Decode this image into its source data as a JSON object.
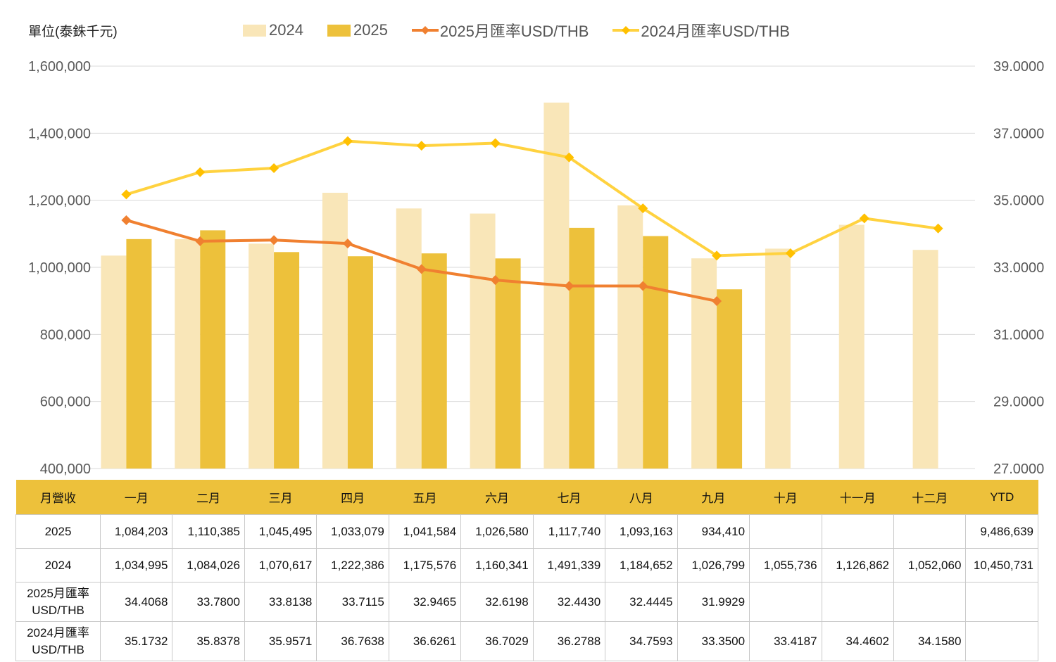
{
  "header": {
    "unit_label": "單位(泰銖千元)"
  },
  "legend": {
    "items": [
      {
        "label": "2024",
        "kind": "bar",
        "color": "#F9E6B8"
      },
      {
        "label": "2025",
        "kind": "bar",
        "color": "#EDC13B"
      },
      {
        "label": "2025月匯率USD/THB",
        "kind": "line",
        "color": "#F08030"
      },
      {
        "label": "2024月匯率USD/THB",
        "kind": "line",
        "color": "#FFD23F"
      }
    ]
  },
  "chart_data": {
    "type": "bar",
    "categories": [
      "一月",
      "二月",
      "三月",
      "四月",
      "五月",
      "六月",
      "七月",
      "八月",
      "九月",
      "十月",
      "十一月",
      "十二月"
    ],
    "y_left": {
      "ylim": [
        400000,
        1600000
      ],
      "ticks": [
        "400,000",
        "600,000",
        "800,000",
        "1,000,000",
        "1,200,000",
        "1,400,000",
        "1,600,000"
      ],
      "tick_values": [
        400000,
        600000,
        800000,
        1000000,
        1200000,
        1400000,
        1600000
      ]
    },
    "y_right": {
      "ylim": [
        27,
        39
      ],
      "ticks": [
        "27.0000",
        "29.0000",
        "31.0000",
        "33.0000",
        "35.0000",
        "37.0000",
        "39.0000"
      ],
      "tick_values": [
        27,
        29,
        31,
        33,
        35,
        37,
        39
      ]
    },
    "grid": true,
    "legend_position": "top",
    "series": [
      {
        "name": "2024",
        "type": "bar",
        "axis": "left",
        "color": "#F9E6B8",
        "values": [
          1034995,
          1084026,
          1070617,
          1222386,
          1175576,
          1160341,
          1491339,
          1184652,
          1026799,
          1055736,
          1126862,
          1052060
        ]
      },
      {
        "name": "2025",
        "type": "bar",
        "axis": "left",
        "color": "#EDC13B",
        "values": [
          1084203,
          1110385,
          1045495,
          1033079,
          1041584,
          1026580,
          1117740,
          1093163,
          934410,
          null,
          null,
          null
        ]
      },
      {
        "name": "2025月匯率USD/THB",
        "type": "line",
        "axis": "right",
        "color": "#F08030",
        "values": [
          34.4068,
          33.78,
          33.8138,
          33.7115,
          32.9465,
          32.6198,
          32.443,
          32.4445,
          31.9929,
          null,
          null,
          null
        ]
      },
      {
        "name": "2024月匯率USD/THB",
        "type": "line",
        "axis": "right",
        "color": "#FFD23F",
        "values": [
          35.1732,
          35.8378,
          35.9571,
          36.7638,
          36.6261,
          36.7029,
          36.2788,
          34.7593,
          33.35,
          33.4187,
          34.4602,
          34.158
        ]
      }
    ]
  },
  "table": {
    "header": [
      "月營收",
      "一月",
      "二月",
      "三月",
      "四月",
      "五月",
      "六月",
      "七月",
      "八月",
      "九月",
      "十月",
      "十一月",
      "十二月",
      "YTD"
    ],
    "rows": [
      {
        "label": "2025",
        "cells": [
          "1,084,203",
          "1,110,385",
          "1,045,495",
          "1,033,079",
          "1,041,584",
          "1,026,580",
          "1,117,740",
          "1,093,163",
          "934,410",
          "",
          "",
          "",
          "9,486,639"
        ]
      },
      {
        "label": "2024",
        "cells": [
          "1,034,995",
          "1,084,026",
          "1,070,617",
          "1,222,386",
          "1,175,576",
          "1,160,341",
          "1,491,339",
          "1,184,652",
          "1,026,799",
          "1,055,736",
          "1,126,862",
          "1,052,060",
          "10,450,731"
        ]
      },
      {
        "label_line1": "2025月匯率",
        "label_line2": "USD/THB",
        "cells": [
          "34.4068",
          "33.7800",
          "33.8138",
          "33.7115",
          "32.9465",
          "32.6198",
          "32.4430",
          "32.4445",
          "31.9929",
          "",
          "",
          "",
          ""
        ]
      },
      {
        "label_line1": "2024月匯率",
        "label_line2": "USD/THB",
        "cells": [
          "35.1732",
          "35.8378",
          "35.9571",
          "36.7638",
          "36.6261",
          "36.7029",
          "36.2788",
          "34.7593",
          "33.3500",
          "33.4187",
          "34.4602",
          "34.1580",
          ""
        ]
      }
    ]
  }
}
